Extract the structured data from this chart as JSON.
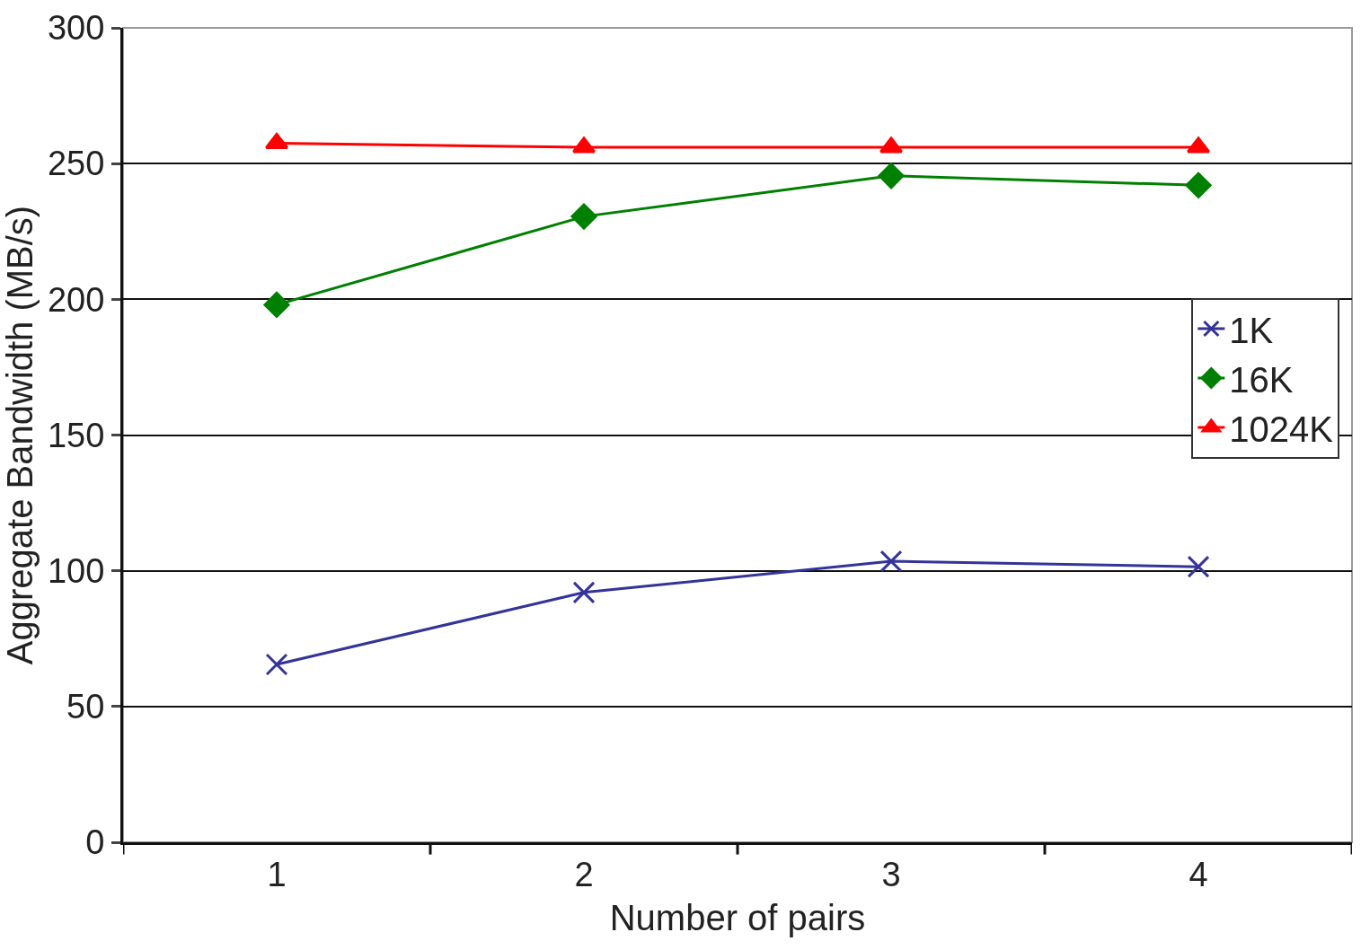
{
  "chart_data": {
    "type": "line",
    "xlabel": "Number of pairs",
    "ylabel": "Aggregate Bandwidth (MB/s)",
    "categories": [
      "1",
      "2",
      "3",
      "4"
    ],
    "series": [
      {
        "name": "1K",
        "color": "#333399",
        "marker": "cross",
        "values": [
          65.5,
          92,
          103.5,
          101.5
        ]
      },
      {
        "name": "16K",
        "color": "#008000",
        "marker": "diamond",
        "values": [
          198,
          230.5,
          245.5,
          242
        ]
      },
      {
        "name": "1024K",
        "color": "#ff0000",
        "marker": "triangle",
        "values": [
          257.5,
          256,
          256,
          256
        ]
      }
    ],
    "ylim": [
      0,
      300
    ],
    "yticks": [
      0,
      50,
      100,
      150,
      200,
      250,
      300
    ],
    "grid": "y",
    "legend": "right",
    "line_style": "solid"
  }
}
